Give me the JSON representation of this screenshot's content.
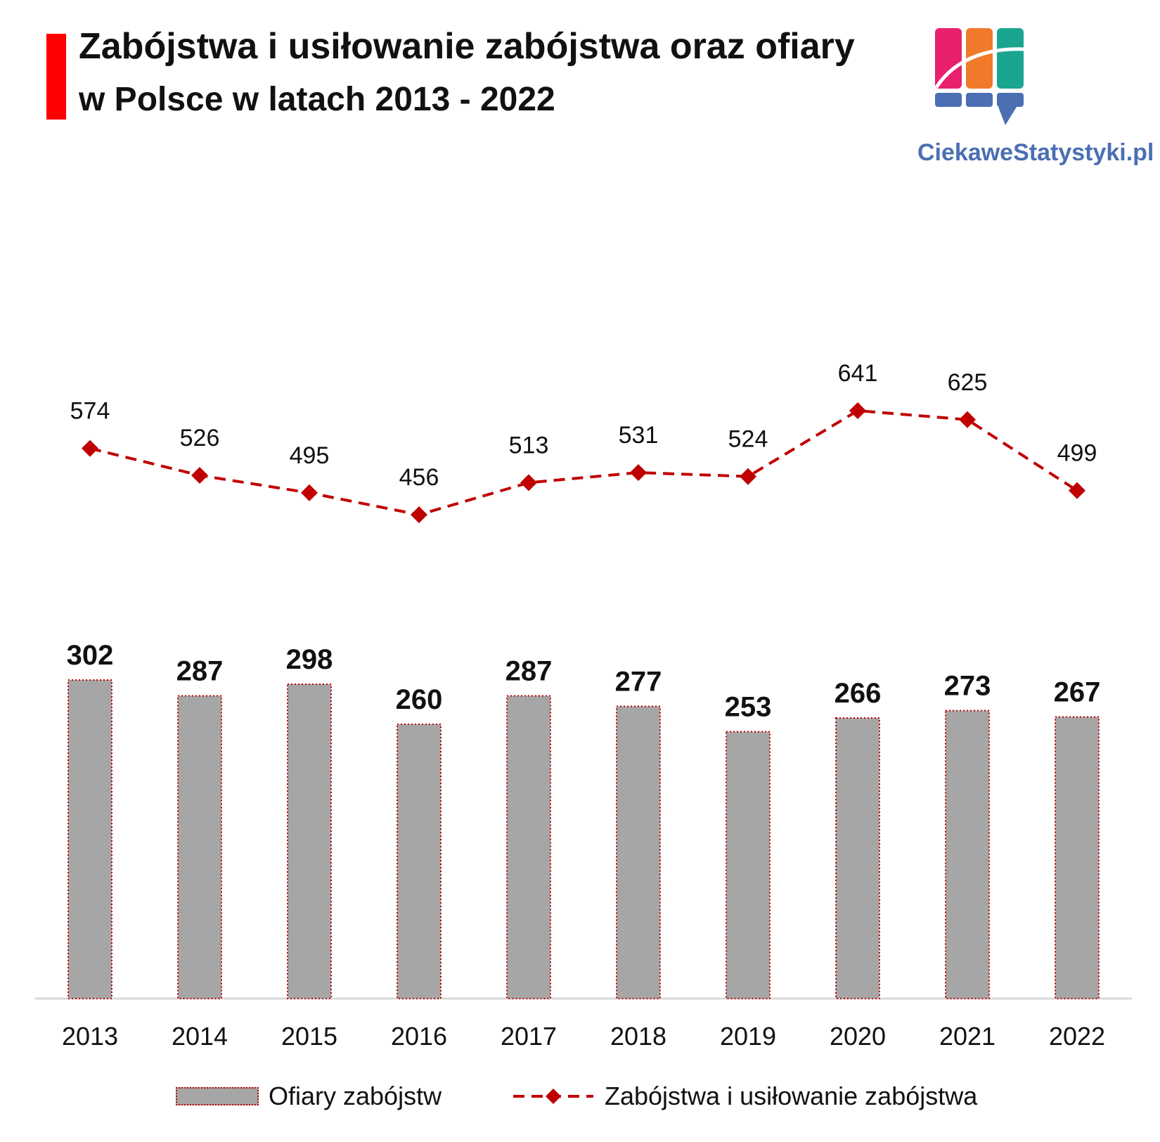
{
  "header": {
    "title": "Zabójstwa i usiłowanie zabójstwa oraz ofiary",
    "subtitle": "w Polsce w latach 2013 - 2022",
    "accent_color": "#ff0000"
  },
  "logo": {
    "text": "CiekaweStatystyki.pl",
    "colors": [
      "#e8216e",
      "#f07a2a",
      "#1aa58f",
      "#4a6fb3"
    ]
  },
  "chart_data": {
    "type": "bar",
    "categories": [
      "2013",
      "2014",
      "2015",
      "2016",
      "2017",
      "2018",
      "2019",
      "2020",
      "2021",
      "2022"
    ],
    "series": [
      {
        "name": "Ofiary zabójstw",
        "type": "bar",
        "color": "#a6a6a6",
        "border_color": "#c00000",
        "values": [
          302,
          287,
          298,
          260,
          287,
          277,
          253,
          266,
          273,
          267
        ]
      },
      {
        "name": "Zabójstwa i usiłowanie zabójstwa",
        "type": "line",
        "style": "dashed",
        "marker": "diamond",
        "color": "#c00000",
        "values": [
          574,
          526,
          495,
          456,
          513,
          531,
          524,
          641,
          625,
          499
        ]
      }
    ],
    "data_labels": true,
    "grid": false,
    "legend_position": "bottom"
  }
}
